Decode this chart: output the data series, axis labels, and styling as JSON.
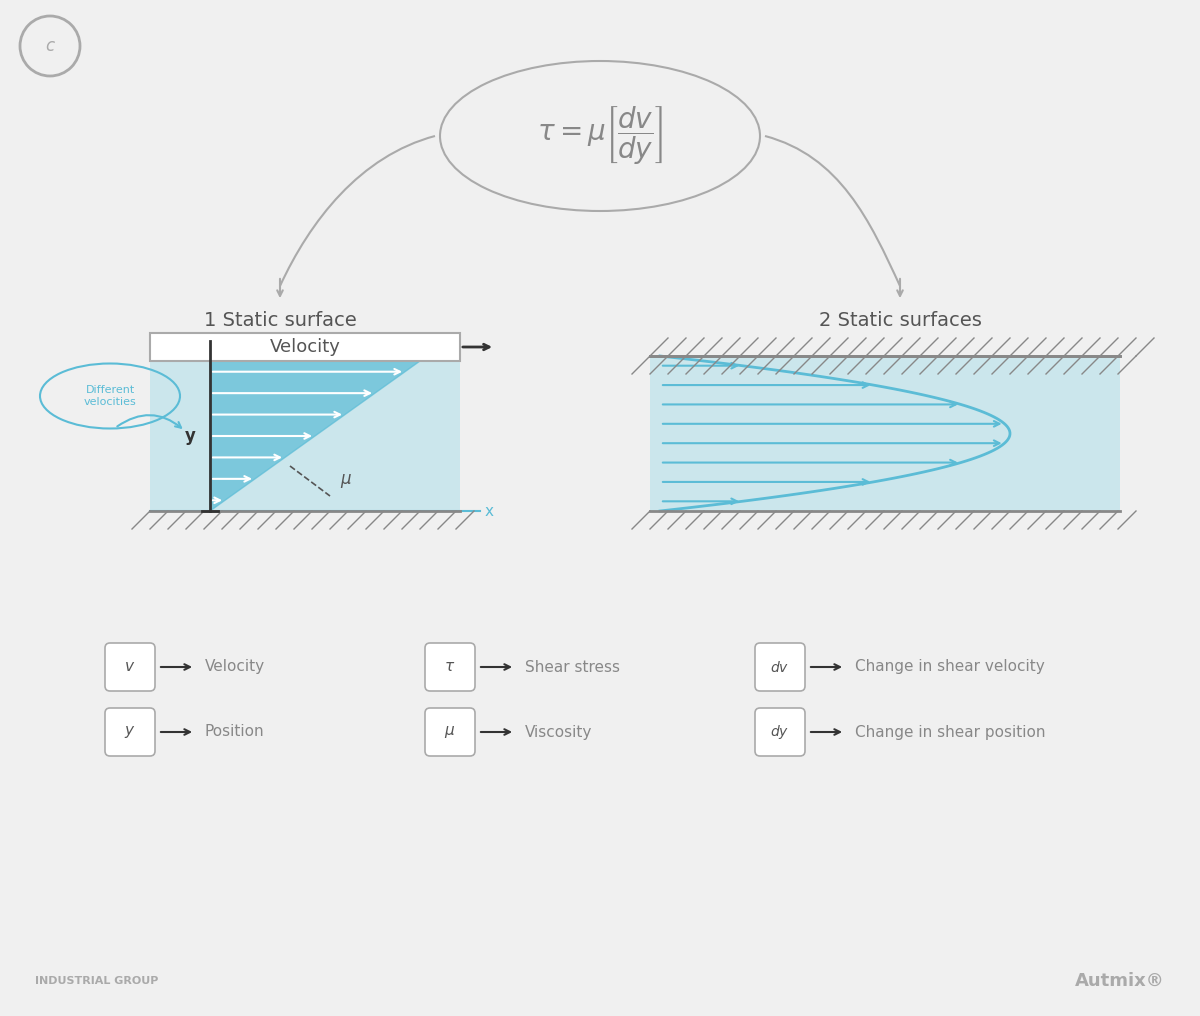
{
  "bg_color": "#f0f0f0",
  "formula_text": "$\\tau = \\mu \\left[\\dfrac{dv}{dy}\\right]$",
  "label1": "1 Static surface",
  "label2": "2 Static surfaces",
  "arrow_color": "#5bbcd6",
  "hatch_color": "#888888",
  "fluid_color": "#a8dde9",
  "fluid_alpha": 0.5,
  "dark_gray": "#555555",
  "light_blue": "#5bbcd6",
  "velocity_box_color": "#aaaaaa",
  "legend_items": [
    {
      "symbol": "v",
      "arrow": true,
      "label": "Velocity"
    },
    {
      "symbol": "\\tau",
      "arrow": true,
      "label": "Shear stress"
    },
    {
      "symbol": "dv",
      "arrow": true,
      "label": "Change in shear velocity"
    },
    {
      "symbol": "y",
      "arrow": true,
      "label": "Position"
    },
    {
      "symbol": "\\mu",
      "arrow": true,
      "label": "Viscosity"
    },
    {
      "symbol": "dy",
      "arrow": true,
      "label": "Change in shear position"
    }
  ],
  "diff_vel_text": "Different\nvelocities",
  "mu_label": "$\\mu$",
  "y_label": "y",
  "x_label": "x",
  "autmix_text": "Autmix®",
  "industrial_text": "INDUSTRIAL GROUP"
}
